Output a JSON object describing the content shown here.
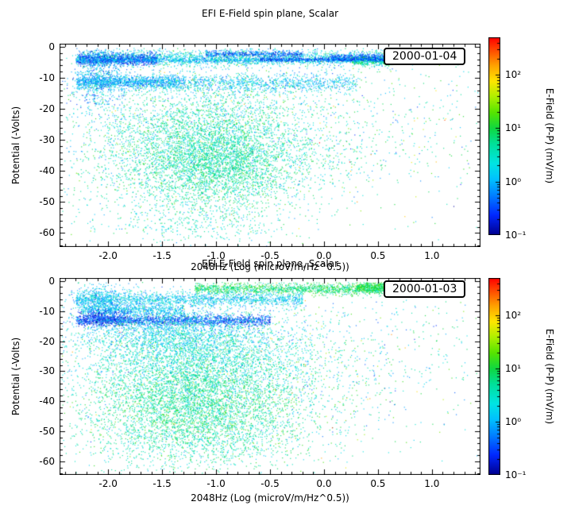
{
  "page": {
    "background": "#ffffff"
  },
  "chart_data": [
    {
      "type": "scatter",
      "title": "EFI  E-Field spin plane, Scalar",
      "date_label": "2000-01-04",
      "xlabel": "2048Hz (Log (microV/m/Hz^0.5))",
      "ylabel": "Potential (-Volts)",
      "xlim": [
        -2.45,
        1.45
      ],
      "ylim": [
        -64.5,
        1.0
      ],
      "xticks": [
        -2.0,
        -1.5,
        -1.0,
        -0.5,
        0.0,
        0.5,
        1.0
      ],
      "xtick_labels": [
        "-2.0",
        "-1.5",
        "-1.0",
        "-0.5",
        "0.0",
        "0.5",
        "1.0"
      ],
      "yticks": [
        0,
        -10,
        -20,
        -30,
        -40,
        -50,
        -60
      ],
      "ytick_labels": [
        "0",
        "-10",
        "-20",
        "-30",
        "-40",
        "-50",
        "-60"
      ],
      "grid": false,
      "colorbar": {
        "label": "E-Field (P-P) (mV/m)",
        "scale": "log",
        "range_log10": [
          -1,
          2.7
        ],
        "tick_values_log10": [
          -1,
          0,
          1,
          2
        ],
        "tick_labels": [
          "10⁻¹",
          "10⁰",
          "10¹",
          "10²"
        ]
      },
      "cluster_fields": [
        "dist(0=uniform-x-band,1=gaussian-blob)",
        "x0_or_xcenter",
        "x1_or_xsigma",
        "y_center",
        "y_sigma",
        "count",
        "log10_value_mean",
        "log10_value_sigma"
      ],
      "clusters": [
        [
          0,
          -2.3,
          0.6,
          -3.5,
          1.3,
          2200,
          0.3,
          0.35
        ],
        [
          0,
          -2.28,
          -1.55,
          -4.0,
          1.0,
          900,
          -0.5,
          0.25
        ],
        [
          0,
          -1.1,
          -0.2,
          -2.2,
          0.5,
          450,
          -0.4,
          0.3
        ],
        [
          0,
          0.05,
          0.58,
          -3.2,
          0.5,
          350,
          -0.45,
          0.25
        ],
        [
          0,
          0.25,
          0.65,
          -4.6,
          0.7,
          250,
          0.75,
          0.3
        ],
        [
          0,
          -2.3,
          0.55,
          -4.2,
          0.4,
          900,
          0.0,
          0.3
        ],
        [
          0,
          -0.6,
          0.55,
          -4.0,
          0.3,
          450,
          -0.5,
          0.25
        ],
        [
          0,
          -2.3,
          0.3,
          -11.5,
          1.4,
          1300,
          0.1,
          0.3
        ],
        [
          0,
          -2.3,
          -1.3,
          -11.0,
          1.0,
          800,
          -0.05,
          0.3
        ],
        [
          1,
          -2.1,
          0.12,
          -10.0,
          6.0,
          600,
          0.0,
          0.4
        ],
        [
          1,
          -1.1,
          0.55,
          -32.0,
          11.0,
          4200,
          0.55,
          0.35
        ],
        [
          1,
          -1.0,
          0.35,
          -38.0,
          7.0,
          1800,
          0.7,
          0.25
        ],
        [
          1,
          -0.6,
          1.0,
          -25.0,
          14.0,
          1200,
          0.5,
          0.5
        ],
        [
          0,
          0.0,
          1.35,
          -25.0,
          15.0,
          180,
          0.6,
          0.6
        ],
        [
          1,
          -1.2,
          0.5,
          -57.0,
          3.0,
          280,
          0.45,
          0.3
        ],
        [
          1,
          -0.5,
          1.2,
          -30.0,
          18.0,
          60,
          1.6,
          0.5
        ]
      ]
    },
    {
      "type": "scatter",
      "title": "EFI  E-Field spin plane, Scalar",
      "date_label": "2000-01-03",
      "xlabel": "2048Hz (Log (microV/m/Hz^0.5))",
      "ylabel": "Potential (-Volts)",
      "xlim": [
        -2.45,
        1.45
      ],
      "ylim": [
        -64.5,
        1.0
      ],
      "xticks": [
        -2.0,
        -1.5,
        -1.0,
        -0.5,
        0.0,
        0.5,
        1.0
      ],
      "xtick_labels": [
        "-2.0",
        "-1.5",
        "-1.0",
        "-0.5",
        "0.0",
        "0.5",
        "1.0"
      ],
      "yticks": [
        0,
        -10,
        -20,
        -30,
        -40,
        -50,
        -60
      ],
      "ytick_labels": [
        "0",
        "-10",
        "-20",
        "-30",
        "-40",
        "-50",
        "-60"
      ],
      "grid": false,
      "colorbar": {
        "label": "E-Field (P-P) (mV/m)",
        "scale": "log",
        "range_log10": [
          -1,
          2.7
        ],
        "tick_values_log10": [
          -1,
          0,
          1,
          2
        ],
        "tick_labels": [
          "10⁻¹",
          "10⁰",
          "10¹",
          "10²"
        ]
      },
      "cluster_fields": [
        "dist(0=uniform-x-band,1=gaussian-blob)",
        "x0_or_xcenter",
        "x1_or_xsigma",
        "y_center",
        "y_sigma",
        "count",
        "log10_value_mean",
        "log10_value_sigma"
      ],
      "clusters": [
        [
          0,
          -1.2,
          0.75,
          -2.5,
          1.0,
          1600,
          0.85,
          0.3
        ],
        [
          0,
          0.3,
          0.75,
          -2.0,
          0.8,
          600,
          1.0,
          0.25
        ],
        [
          0,
          -2.3,
          -0.2,
          -6.0,
          1.2,
          1400,
          0.15,
          0.3
        ],
        [
          1,
          -2.05,
          0.15,
          -6.0,
          3.0,
          500,
          0.1,
          0.3
        ],
        [
          0,
          -2.25,
          -1.3,
          -9.5,
          1.0,
          600,
          0.1,
          0.3
        ],
        [
          0,
          -2.3,
          -0.5,
          -13.0,
          0.9,
          1500,
          -0.5,
          0.25
        ],
        [
          1,
          -2.05,
          0.12,
          -12.0,
          1.5,
          400,
          -0.6,
          0.2
        ],
        [
          1,
          -1.4,
          0.5,
          -16.0,
          4.0,
          1700,
          0.2,
          0.3
        ],
        [
          1,
          -1.2,
          0.55,
          -26.0,
          6.0,
          2400,
          0.45,
          0.3
        ],
        [
          1,
          -1.2,
          0.5,
          -42.0,
          8.0,
          4200,
          0.7,
          0.3
        ],
        [
          1,
          -0.7,
          0.9,
          -30.0,
          15.0,
          1400,
          0.5,
          0.5
        ],
        [
          0,
          0.0,
          1.35,
          -20.0,
          12.0,
          140,
          0.6,
          0.5
        ],
        [
          1,
          -1.3,
          0.6,
          -55.0,
          4.0,
          450,
          0.55,
          0.3
        ],
        [
          1,
          -0.5,
          1.2,
          -30.0,
          18.0,
          60,
          1.6,
          0.5
        ]
      ]
    }
  ],
  "colormap": {
    "stops": [
      [
        0.0,
        "#000090"
      ],
      [
        0.1,
        "#0028ff"
      ],
      [
        0.2,
        "#0080ff"
      ],
      [
        0.28,
        "#00c0ff"
      ],
      [
        0.36,
        "#00e4e4"
      ],
      [
        0.46,
        "#00e09a"
      ],
      [
        0.54,
        "#10d840"
      ],
      [
        0.62,
        "#56e400"
      ],
      [
        0.7,
        "#aef000"
      ],
      [
        0.78,
        "#ffe600"
      ],
      [
        0.86,
        "#ffa000"
      ],
      [
        0.93,
        "#ff5200"
      ],
      [
        1.0,
        "#ff0000"
      ]
    ]
  }
}
